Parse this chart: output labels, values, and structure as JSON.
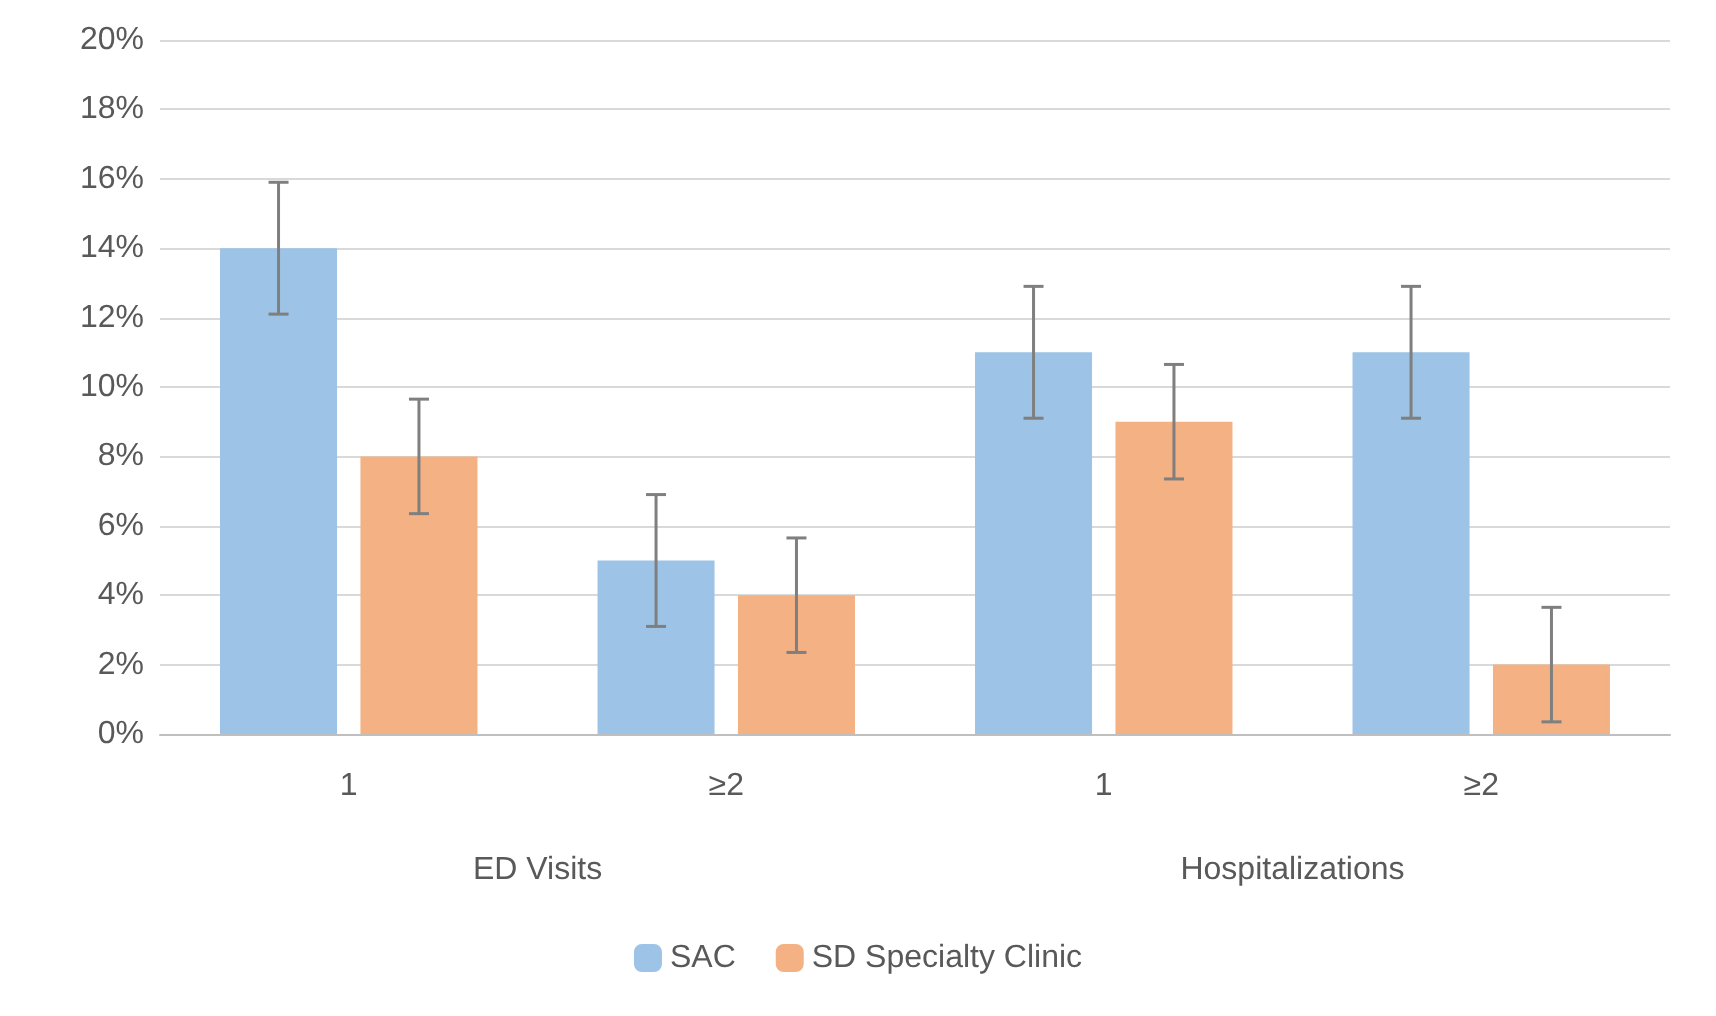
{
  "chart_data": {
    "type": "bar",
    "categories": [
      "1",
      "≥2",
      "1",
      "≥2"
    ],
    "series": [
      {
        "name": "SAC",
        "color": "#9dc3e6",
        "values": [
          14,
          5,
          11,
          11
        ],
        "errors": [
          1.9,
          1.9,
          1.9,
          1.9
        ]
      },
      {
        "name": "SD Specialty Clinic",
        "color": "#f4b183",
        "values": [
          8,
          4,
          9,
          2
        ],
        "errors": [
          1.65,
          1.65,
          1.65,
          1.65
        ]
      }
    ],
    "annotations": [
      "ED Visits",
      "Hospitalizations"
    ],
    "ylim": [
      0,
      20
    ],
    "yticks": [
      {
        "value": 0,
        "label": "0%"
      },
      {
        "value": 2,
        "label": "2%"
      },
      {
        "value": 4,
        "label": "4%"
      },
      {
        "value": 6,
        "label": "6%"
      },
      {
        "value": 8,
        "label": "8%"
      },
      {
        "value": 10,
        "label": "10%"
      },
      {
        "value": 12,
        "label": "12%"
      },
      {
        "value": 14,
        "label": "14%"
      },
      {
        "value": 16,
        "label": "16%"
      },
      {
        "value": 18,
        "label": "18%"
      },
      {
        "value": 20,
        "label": "20%"
      }
    ],
    "grid": "y",
    "legend": "bottom"
  }
}
